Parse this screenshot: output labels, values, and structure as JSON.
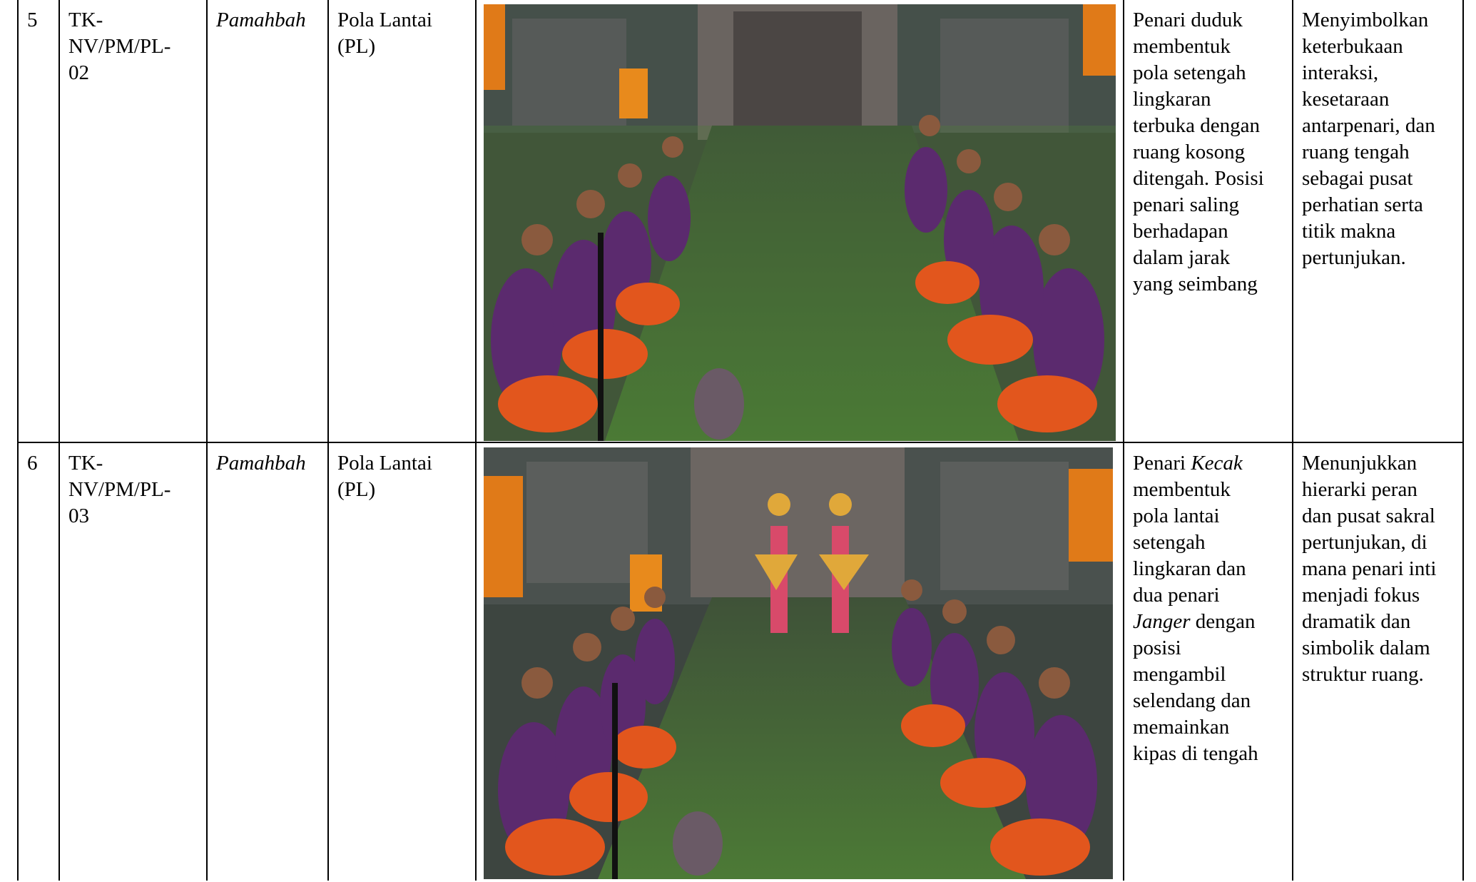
{
  "rows": [
    {
      "no": "5",
      "code_line1": "TK-",
      "code_line2": "NV/PM/PL-",
      "code_line3": "02",
      "category": "Pamahbah",
      "type_line1": "Pola Lantai",
      "type_line2": "(PL)",
      "description_lines": [
        "Penari duduk",
        "membentuk",
        "pola setengah",
        "lingkaran",
        "terbuka dengan",
        "ruang kosong",
        "ditengah. Posisi",
        "penari saling",
        "berhadapan",
        "dalam jarak",
        "yang seimbang"
      ],
      "meaning_lines": [
        "Menyimbolkan",
        "keterbukaan",
        "interaksi,",
        "kesetaraan",
        "antarpenari, dan",
        "ruang tengah",
        "sebagai pusat",
        "perhatian serta",
        "titik makna",
        "pertunjukan."
      ]
    },
    {
      "no": "6",
      "code_line1": "TK-",
      "code_line2": "NV/PM/PL-",
      "code_line3": "03",
      "category": "Pamahbah",
      "type_line1": "Pola Lantai",
      "type_line2": "(PL)",
      "description": {
        "l1a": "Penari ",
        "l1b": "Kecak",
        "l2": "membentuk",
        "l3": "pola lantai",
        "l4": "setengah",
        "l5": "lingkaran dan",
        "l6": "dua penari",
        "l7a": "Janger",
        "l7b": " dengan",
        "l8": "posisi",
        "l9": "mengambil",
        "l10": "selendang dan",
        "l11": "memainkan",
        "l12": "kipas di tengah"
      },
      "meaning_lines": [
        "Menunjukkan",
        "hierarki peran",
        "dan pusat sakral",
        "pertunjukan, di",
        "mana penari inti",
        "menjadi fokus",
        "dramatik dan",
        "simbolik dalam",
        "struktur ruang."
      ]
    }
  ]
}
